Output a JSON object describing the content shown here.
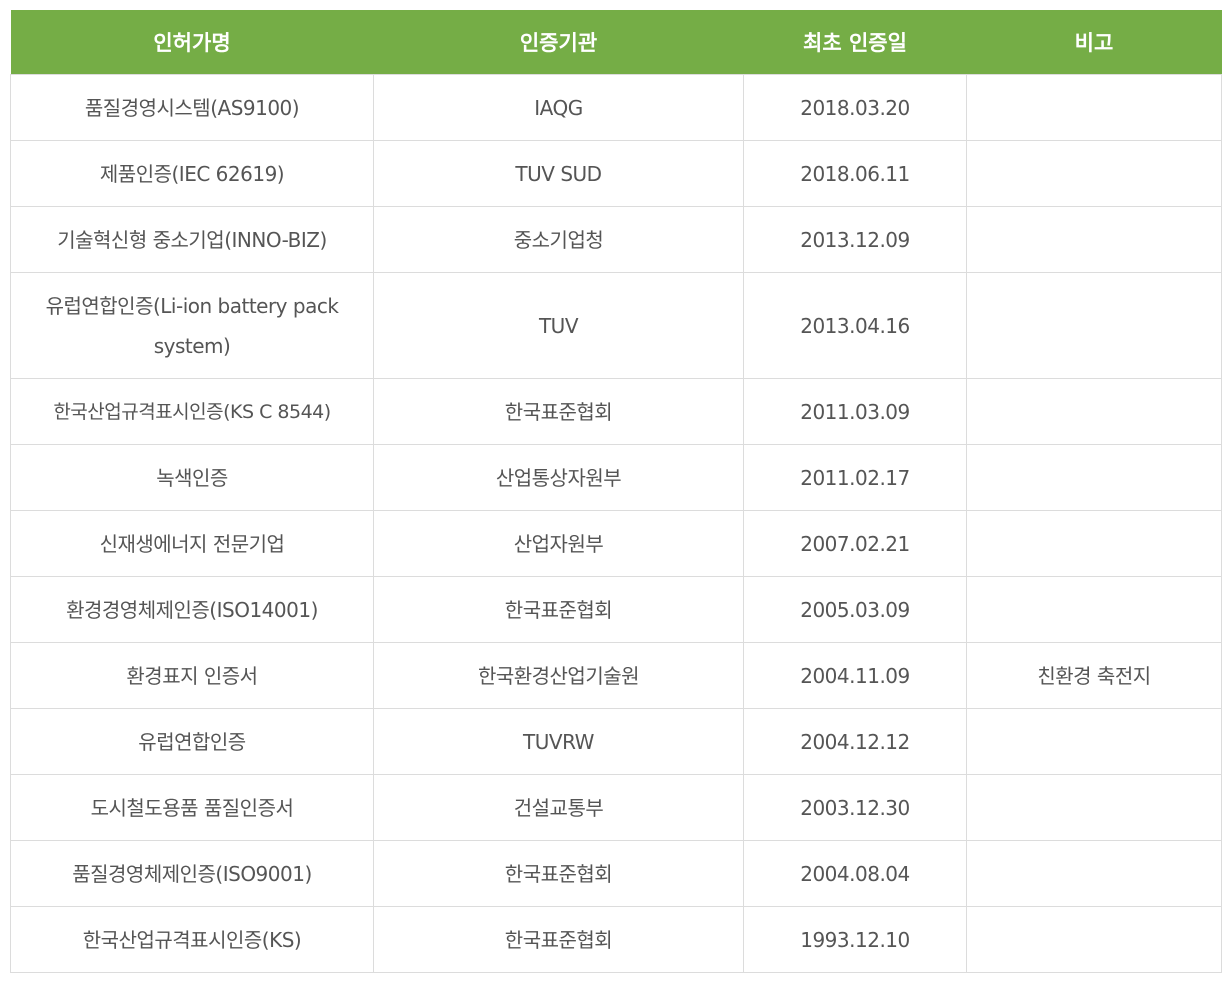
{
  "table": {
    "headers": [
      "인허가명",
      "인증기관",
      "최초 인증일",
      "비고"
    ],
    "rows": [
      {
        "name": "품질경영시스템(AS9100)",
        "agency": "IAQG",
        "date": "2018.03.20",
        "note": ""
      },
      {
        "name": "제품인증(IEC 62619)",
        "agency": "TUV SUD",
        "date": "2018.06.11",
        "note": ""
      },
      {
        "name": "기술혁신형 중소기업(INNO-BIZ)",
        "agency": "중소기업청",
        "date": "2013.12.09",
        "note": ""
      },
      {
        "name": "유럽연합인증(Li-ion battery pack system)",
        "agency": "TUV",
        "date": "2013.04.16",
        "note": ""
      },
      {
        "name": "한국산업규격표시인증(KS C 8544)",
        "agency": "한국표준협회",
        "date": "2011.03.09",
        "note": ""
      },
      {
        "name": "녹색인증",
        "agency": "산업통상자원부",
        "date": "2011.02.17",
        "note": ""
      },
      {
        "name": "신재생에너지 전문기업",
        "agency": "산업자원부",
        "date": "2007.02.21",
        "note": ""
      },
      {
        "name": "환경경영체제인증(ISO14001)",
        "agency": "한국표준협회",
        "date": "2005.03.09",
        "note": ""
      },
      {
        "name": "환경표지 인증서",
        "agency": "한국환경산업기술원",
        "date": "2004.11.09",
        "note": "친환경 축전지"
      },
      {
        "name": "유럽연합인증",
        "agency": "TUVRW",
        "date": "2004.12.12",
        "note": ""
      },
      {
        "name": "도시철도용품 품질인증서",
        "agency": "건설교통부",
        "date": "2003.12.30",
        "note": ""
      },
      {
        "name": "품질경영체제인증(ISO9001)",
        "agency": "한국표준협회",
        "date": "2004.08.04",
        "note": ""
      },
      {
        "name": "한국산업규격표시인증(KS)",
        "agency": "한국표준협회",
        "date": "1993.12.10",
        "note": ""
      }
    ]
  },
  "colors": {
    "header_bg": "#75ad46",
    "header_text": "#ffffff",
    "cell_text": "#555555",
    "border": "#dcdcdc"
  }
}
